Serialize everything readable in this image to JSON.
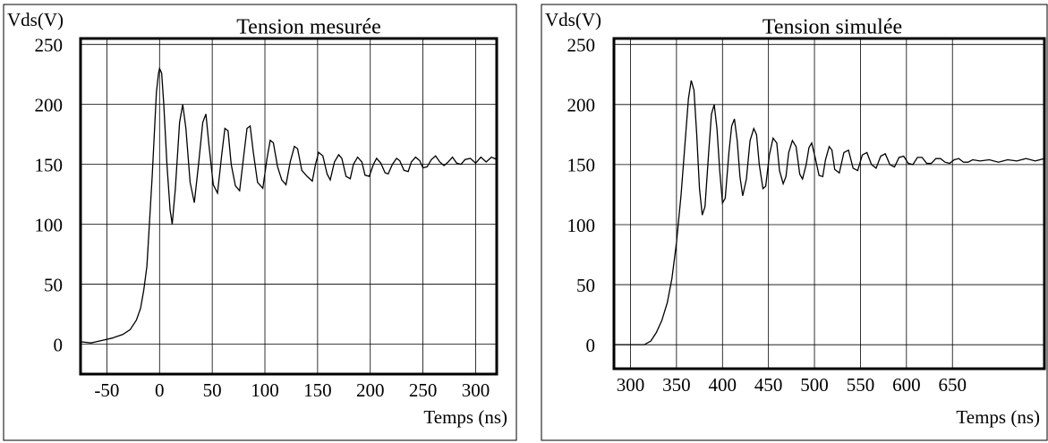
{
  "chart_data": [
    {
      "type": "line",
      "title": "Tension mesurée",
      "ylabel": "Vds(V)",
      "xlabel": "Temps (ns)",
      "color": "#000000",
      "grid": true,
      "xlim": [
        -75,
        320
      ],
      "ylim": [
        -25,
        255
      ],
      "xticks": [
        -50,
        0,
        50,
        100,
        150,
        200,
        250,
        300
      ],
      "yticks": [
        0,
        50,
        100,
        150,
        200,
        250
      ],
      "x": [
        -75,
        -65,
        -55,
        -45,
        -35,
        -28,
        -22,
        -18,
        -15,
        -12,
        -10,
        -7,
        -5,
        -3,
        -1,
        0,
        2,
        4,
        7,
        10,
        12,
        15,
        19,
        22,
        25,
        29,
        33,
        37,
        41,
        44,
        47,
        51,
        55,
        59,
        62,
        65,
        68,
        72,
        76,
        80,
        83,
        86,
        89,
        93,
        98,
        102,
        105,
        108,
        112,
        116,
        120,
        124,
        128,
        131,
        135,
        140,
        145,
        148,
        151,
        155,
        159,
        162,
        166,
        170,
        173,
        177,
        181,
        184,
        188,
        192,
        195,
        199,
        203,
        206,
        210,
        214,
        217,
        221,
        225,
        228,
        232,
        236,
        239,
        243,
        247,
        250,
        254,
        258,
        262,
        266,
        270,
        274,
        278,
        282,
        286,
        290,
        295,
        300,
        305,
        310,
        315,
        320
      ],
      "values": [
        2,
        1,
        3,
        5,
        8,
        12,
        20,
        30,
        45,
        65,
        95,
        140,
        175,
        210,
        226,
        230,
        226,
        200,
        150,
        112,
        100,
        130,
        185,
        200,
        180,
        135,
        118,
        150,
        185,
        192,
        165,
        133,
        126,
        158,
        180,
        178,
        150,
        132,
        128,
        158,
        180,
        182,
        160,
        135,
        130,
        155,
        170,
        168,
        148,
        137,
        133,
        152,
        165,
        163,
        145,
        140,
        136,
        150,
        160,
        157,
        142,
        137,
        152,
        158,
        155,
        140,
        138,
        150,
        156,
        152,
        141,
        140,
        150,
        155,
        151,
        143,
        142,
        150,
        155,
        153,
        145,
        144,
        152,
        156,
        153,
        147,
        148,
        154,
        157,
        152,
        149,
        152,
        156,
        151,
        150,
        154,
        155,
        151,
        156,
        152,
        156,
        154
      ]
    },
    {
      "type": "line",
      "title": "Tension simulée",
      "ylabel": "Vds(V)",
      "xlabel": "Temps (ns)",
      "color": "#000000",
      "grid": true,
      "xlim": [
        282,
        750
      ],
      "ylim": [
        -20,
        255
      ],
      "xticks": [
        300,
        350,
        400,
        450,
        500,
        550,
        600,
        650
      ],
      "yticks": [
        0,
        50,
        100,
        150,
        200,
        250
      ],
      "x": [
        282,
        300,
        315,
        322,
        328,
        334,
        340,
        345,
        350,
        355,
        360,
        363,
        366,
        369,
        372,
        375,
        378,
        381,
        385,
        388,
        391,
        394,
        397,
        400,
        403,
        407,
        410,
        413,
        416,
        419,
        422,
        426,
        430,
        434,
        437,
        440,
        444,
        447,
        451,
        455,
        459,
        462,
        466,
        469,
        472,
        476,
        480,
        484,
        487,
        491,
        494,
        497,
        501,
        505,
        509,
        512,
        516,
        519,
        522,
        527,
        532,
        537,
        542,
        547,
        552,
        557,
        562,
        567,
        572,
        577,
        582,
        587,
        592,
        597,
        602,
        607,
        612,
        617,
        622,
        627,
        632,
        637,
        642,
        647,
        652,
        657,
        662,
        667,
        672,
        680,
        690,
        700,
        710,
        720,
        730,
        740,
        750
      ],
      "values": [
        0,
        0,
        0,
        3,
        10,
        20,
        35,
        55,
        85,
        125,
        175,
        205,
        220,
        212,
        175,
        130,
        108,
        115,
        160,
        192,
        200,
        180,
        145,
        118,
        122,
        160,
        182,
        188,
        170,
        140,
        124,
        138,
        170,
        180,
        175,
        150,
        130,
        132,
        158,
        172,
        168,
        145,
        134,
        140,
        160,
        170,
        165,
        142,
        138,
        150,
        164,
        168,
        155,
        141,
        140,
        154,
        165,
        162,
        146,
        143,
        160,
        162,
        147,
        145,
        158,
        160,
        150,
        147,
        157,
        159,
        150,
        148,
        156,
        157,
        151,
        150,
        156,
        156,
        151,
        151,
        155,
        155,
        152,
        151,
        154,
        155,
        152,
        152,
        154,
        153,
        154,
        152,
        154,
        153,
        155,
        153,
        155
      ]
    }
  ]
}
